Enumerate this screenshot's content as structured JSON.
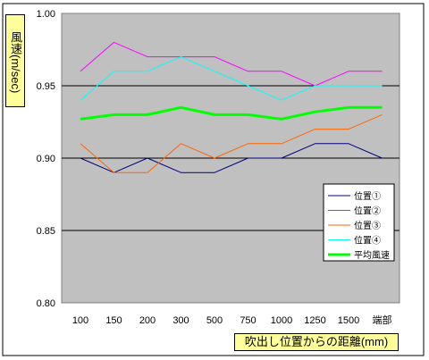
{
  "chart_data": {
    "type": "line",
    "categories": [
      "100",
      "150",
      "200",
      "300",
      "500",
      "750",
      "1000",
      "1250",
      "1500",
      "端部"
    ],
    "xlabel": "吹出し位置からの距離(mm)",
    "ylabel": "風速(m/sec)",
    "ylim": [
      0.8,
      1.0
    ],
    "yticks": [
      "1.00",
      "0.95",
      "0.90",
      "0.85",
      "0.80"
    ],
    "grid": "horizontal",
    "legend_position": "right",
    "plot_background": "#c0c0c0",
    "label_background": "#ffff99",
    "series": [
      {
        "name": "位置①",
        "color": "#000080",
        "width": 1,
        "values": [
          0.9,
          0.89,
          0.9,
          0.89,
          0.89,
          0.9,
          0.9,
          0.91,
          0.91,
          0.9
        ]
      },
      {
        "name": "位置②",
        "color": "#ff00ff",
        "width": 1,
        "values": [
          0.96,
          0.98,
          0.97,
          0.97,
          0.97,
          0.96,
          0.96,
          0.95,
          0.96,
          0.96
        ]
      },
      {
        "name": "位置③",
        "color": "#ff6600",
        "width": 1,
        "values": [
          0.91,
          0.89,
          0.89,
          0.91,
          0.9,
          0.91,
          0.91,
          0.92,
          0.92,
          0.93
        ]
      },
      {
        "name": "位置④",
        "color": "#00ffff",
        "width": 1,
        "values": [
          0.94,
          0.96,
          0.96,
          0.97,
          0.96,
          0.95,
          0.94,
          0.95,
          0.95,
          0.95
        ]
      },
      {
        "name": "平均風速",
        "color": "#00ff00",
        "width": 3,
        "values": [
          0.927,
          0.93,
          0.93,
          0.935,
          0.93,
          0.93,
          0.927,
          0.932,
          0.935,
          0.935
        ]
      }
    ]
  }
}
